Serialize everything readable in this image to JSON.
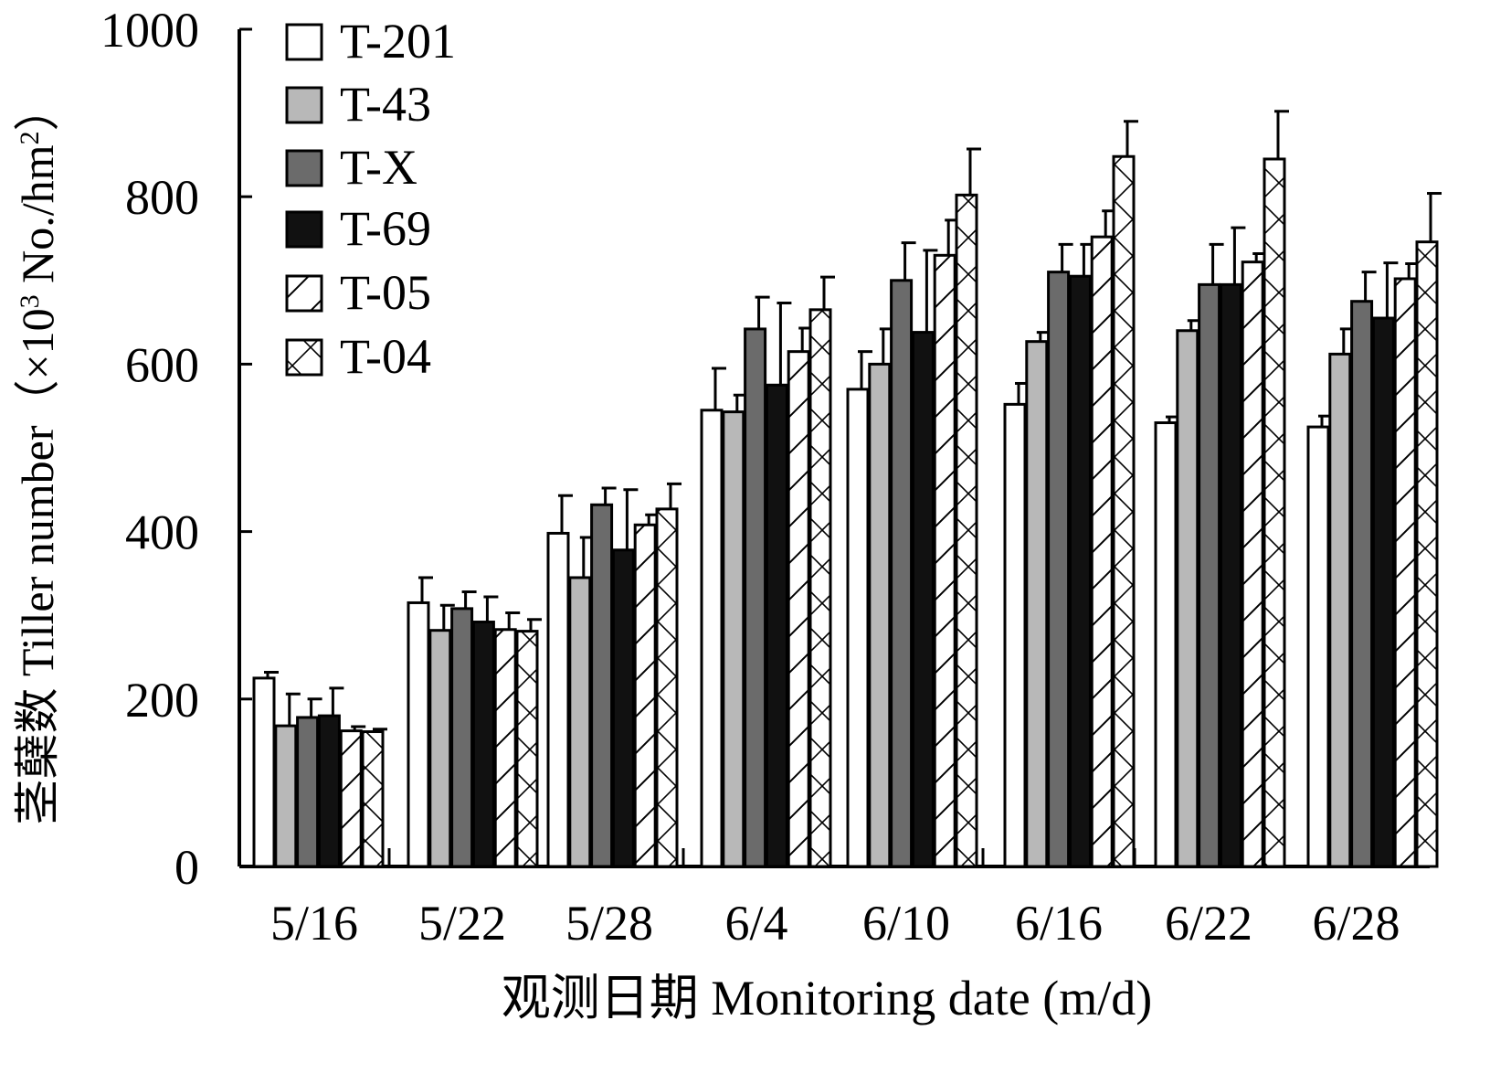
{
  "chart_data": {
    "type": "bar",
    "title": "",
    "xlabel": "观测日期 Monitoring date (m/d)",
    "ylabel_prefix": "茎蘖数 Tiller number（×10",
    "ylabel_sup": "3",
    "ylabel_mid": " No./hm",
    "ylabel_sup2": "2",
    "ylabel_suffix": "）",
    "ylabel": "茎蘖数 Tiller number（×10³ No./hm²）",
    "ylim": [
      0,
      1000
    ],
    "yticks": [
      "0",
      "200",
      "400",
      "600",
      "800",
      "1000"
    ],
    "grid": false,
    "legend_position": "top-left",
    "categories": [
      "5/16",
      "5/22",
      "5/28",
      "6/4",
      "6/10",
      "6/16",
      "6/22",
      "6/28"
    ],
    "series": [
      {
        "name": "T-201",
        "fill": "#ffffff",
        "pattern": "none",
        "values": [
          225,
          315,
          398,
          545,
          570,
          552,
          530,
          525
        ],
        "errors": [
          7,
          30,
          45,
          50,
          45,
          25,
          7,
          13
        ]
      },
      {
        "name": "T-43",
        "fill": "#b8b8b8",
        "pattern": "none",
        "values": [
          168,
          282,
          345,
          543,
          600,
          627,
          640,
          612
        ],
        "errors": [
          38,
          30,
          48,
          20,
          42,
          11,
          12,
          30
        ]
      },
      {
        "name": "T-X",
        "fill": "#6b6b6b",
        "pattern": "none",
        "values": [
          178,
          308,
          432,
          642,
          700,
          710,
          695,
          675
        ],
        "errors": [
          22,
          20,
          20,
          38,
          45,
          33,
          48,
          35
        ]
      },
      {
        "name": "T-69",
        "fill": "#111111",
        "pattern": "none",
        "values": [
          180,
          292,
          378,
          575,
          638,
          705,
          695,
          655
        ],
        "errors": [
          33,
          30,
          72,
          98,
          98,
          38,
          68,
          66
        ]
      },
      {
        "name": "T-05",
        "fill": "#ffffff",
        "pattern": "diagonal",
        "values": [
          162,
          283,
          408,
          615,
          730,
          752,
          722,
          702
        ],
        "errors": [
          5,
          20,
          12,
          28,
          42,
          31,
          10,
          18
        ]
      },
      {
        "name": "T-04",
        "fill": "#ffffff",
        "pattern": "cross",
        "values": [
          161,
          281,
          427,
          665,
          802,
          848,
          845,
          746
        ],
        "errors": [
          3,
          14,
          30,
          39,
          55,
          42,
          57,
          58
        ]
      }
    ]
  }
}
